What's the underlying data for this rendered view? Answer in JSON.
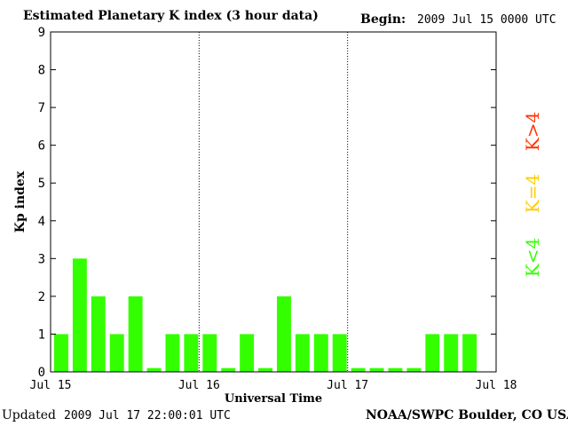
{
  "header": {
    "title": "Estimated Planetary K index (3 hour data)",
    "begin_label": "Begin:",
    "begin_value": "2009 Jul 15 0000 UTC"
  },
  "footer": {
    "updated_label": "Updated",
    "updated_value": "2009 Jul 17 22:00:01 UTC",
    "credit": "NOAA/SWPC Boulder, CO USA"
  },
  "legend": [
    {
      "label": "K>4",
      "color": "#ff3300"
    },
    {
      "label": "K=4",
      "color": "#ffcc00"
    },
    {
      "label": "K<4",
      "color": "#33ff00"
    }
  ],
  "chart_data": {
    "type": "bar",
    "title": "Estimated Planetary K index (3 hour data)",
    "xlabel": "Universal Time",
    "ylabel": "Kp index",
    "ylim": [
      0,
      9
    ],
    "yticks": [
      "0",
      "1",
      "2",
      "3",
      "4",
      "5",
      "6",
      "7",
      "8",
      "9"
    ],
    "xticks": [
      "Jul 15",
      "Jul 16",
      "Jul 17",
      "Jul 18"
    ],
    "bar_color": "#33ff00",
    "bins_per_day": 8,
    "series": [
      {
        "values": [
          1,
          3,
          2,
          1,
          2,
          0.1,
          1,
          1,
          1,
          0.1,
          1,
          0.1,
          2,
          1,
          1,
          1,
          0.1,
          0.1,
          0.1,
          0.1,
          1,
          1,
          1
        ]
      }
    ]
  }
}
